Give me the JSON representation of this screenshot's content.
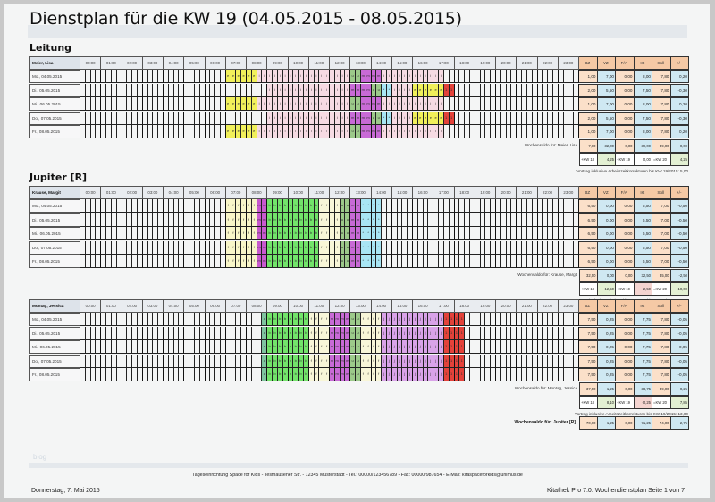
{
  "title": "Dienstplan für die KW 19 (04.05.2015 - 08.05.2015)",
  "hours": [
    "00:00",
    "01:00",
    "02:00",
    "03:00",
    "04:00",
    "05:00",
    "06:00",
    "07:00",
    "08:00",
    "09:00",
    "10:00",
    "11:00",
    "12:00",
    "13:00",
    "14:00",
    "15:00",
    "16:00",
    "17:00",
    "18:00",
    "19:00",
    "20:00",
    "21:00",
    "22:00",
    "23:00"
  ],
  "summary_headers": [
    "BZ",
    "VZ",
    "F/A",
    "Ist",
    "Soll",
    "+/-"
  ],
  "colors": {
    "e": "#f1f05a",
    "i": "#f6dbe3",
    "u": "#9cc98a",
    "M": "#c86ad6",
    "*": "#a8e6f4",
    "F": "#f8f6c8",
    "m": "#c85ad0",
    "b": "#72e46a",
    "f": "#f8f6d8",
    "J": "#d9a3e8",
    "1": "#e4423a",
    "a": "#7fc4a0",
    ".": ""
  },
  "sections": [
    {
      "title": "Leitung",
      "employee": "Meier, Lisa",
      "rows": [
        {
          "day": "Mo., 04.05.2015",
          "cells": "............................eeeeeeiiiiiiiiiiiiiiiiiiuuMMMMiiiiiiiiiiii",
          "sum": [
            "1,00",
            "7,00",
            "0,00",
            "8,00",
            "7,80",
            "0,20"
          ]
        },
        {
          "day": "Di., 05.05.2015",
          "cells": "....................................iiiiiiiiiiiiiiiiMMMMuu**iiiieeeeee11",
          "sum": [
            "2,00",
            "5,50",
            "0,00",
            "7,50",
            "7,80",
            "-0,30"
          ]
        },
        {
          "day": "Mi., 06.05.2015",
          "cells": "............................eeeeeeiiiiiiiiiiiiiiiiiiuuMMMMiiiiiiiiiiii",
          "sum": [
            "1,00",
            "7,00",
            "0,00",
            "8,00",
            "7,80",
            "0,20"
          ]
        },
        {
          "day": "Do., 07.05.2015",
          "cells": "....................................iiiiiiiiiiiiiiiiMMMMuu**iiiieeeeee11",
          "sum": [
            "2,00",
            "5,50",
            "0,00",
            "7,50",
            "7,80",
            "-0,30"
          ]
        },
        {
          "day": "Fr., 08.05.2015",
          "cells": "............................eeeeeeiiiiiiiiiiiiiiiiiiuuMMMMiiiiiiiiiiii",
          "sum": [
            "1,00",
            "7,00",
            "0,00",
            "8,00",
            "7,80",
            "0,20"
          ]
        }
      ],
      "saldo_label": "Wochensaldo für: Meier, Lisa",
      "saldo": [
        "7,00",
        "32,00",
        "0,00",
        "39,00",
        "39,00",
        "0,00"
      ],
      "kw": [
        [
          "+KW 18",
          "4,25",
          "green"
        ],
        [
          "+KW 19",
          "0,00",
          "white"
        ],
        [
          "=KW 20",
          "4,25",
          "green"
        ]
      ],
      "vortrag": "Vortrag inklusive Arbeitszeitkorrekturen bis KW 19/2015: 5,00"
    },
    {
      "title": "Jupiter [R]",
      "employee": "Krause, Margit",
      "rows": [
        {
          "day": "Mo., 04.05.2015",
          "cells": "............................FFFFFFmmbbbbbbbbbbffffuuMM****",
          "sum": [
            "6,50",
            "0,00",
            "0,00",
            "6,50",
            "7,00",
            "-0,50"
          ]
        },
        {
          "day": "Di., 05.05.2015",
          "cells": "............................FFFFFFmmbbbbbbbbbbffffuuMM****",
          "sum": [
            "6,50",
            "0,00",
            "0,00",
            "6,50",
            "7,00",
            "-0,50"
          ]
        },
        {
          "day": "Mi., 06.05.2015",
          "cells": "............................FFFFFFmmbbbbbbbbbbffffuuMM****",
          "sum": [
            "6,50",
            "0,00",
            "0,00",
            "6,50",
            "7,00",
            "-0,50"
          ]
        },
        {
          "day": "Do., 07.05.2015",
          "cells": "............................FFFFFFmmbbbbbbbbbbffffuuMM****",
          "sum": [
            "6,50",
            "0,00",
            "0,00",
            "6,50",
            "7,00",
            "-0,50"
          ]
        },
        {
          "day": "Fr., 08.05.2015",
          "cells": "............................FFFFFFmmbbbbbbbbbbffffuuMM****",
          "sum": [
            "6,50",
            "0,00",
            "0,00",
            "6,50",
            "7,00",
            "-0,50"
          ]
        }
      ],
      "saldo_label": "Wochensaldo für: Krause, Margit",
      "saldo": [
        "32,50",
        "0,00",
        "0,00",
        "32,50",
        "35,00",
        "-2,50"
      ],
      "kw": [
        [
          "+KW 18",
          "12,50",
          "green"
        ],
        [
          "+KW 19",
          "-2,50",
          "red"
        ],
        [
          "=KW 20",
          "10,00",
          "green"
        ]
      ],
      "vortrag": "Vortrag inklusive Arbeitszeitkorrekturen bis KW 19/2015: 11,00"
    },
    {
      "title": "",
      "employee": "Montag, Jessica",
      "rows": [
        {
          "day": "Mo., 04.05.2015",
          "cells": "...................................abbbbbbbbffffMMMMuuffffJJJJJJJJJJJJ1111",
          "sum": [
            "7,50",
            "0,25",
            "0,00",
            "7,75",
            "7,80",
            "-0,05"
          ]
        },
        {
          "day": "Di., 05.05.2015",
          "cells": "...................................abbbbbbbbffffMMMMuuffffJJJJJJJJJJJJ1111",
          "sum": [
            "7,50",
            "0,25",
            "0,00",
            "7,75",
            "7,80",
            "-0,05"
          ]
        },
        {
          "day": "Mi., 06.05.2015",
          "cells": "...................................abbbbbbbbffffMMMMuuffffJJJJJJJJJJJJ1111",
          "sum": [
            "7,50",
            "0,25",
            "0,00",
            "7,75",
            "7,80",
            "-0,05"
          ]
        },
        {
          "day": "Do., 07.05.2015",
          "cells": "...................................abbbbbbbbffffMMMMuuffffJJJJJJJJJJJJ1111",
          "sum": [
            "7,50",
            "0,25",
            "0,00",
            "7,75",
            "7,80",
            "-0,05"
          ]
        },
        {
          "day": "Fr., 08.05.2015",
          "cells": "...................................abbbbbbbbffffMMMMuuffffJJJJJJJJJJJJ1111",
          "sum": [
            "7,50",
            "0,25",
            "0,00",
            "7,75",
            "7,80",
            "-0,05"
          ]
        }
      ],
      "saldo_label": "Wochensaldo für: Montag, Jessica",
      "saldo": [
        "37,50",
        "1,25",
        "0,00",
        "38,75",
        "39,00",
        "-0,25"
      ],
      "kw": [
        [
          "+KW 18",
          "8,10",
          "green"
        ],
        [
          "+KW 19",
          "-0,25",
          "red"
        ],
        [
          "=KW 20",
          "7,85",
          "green"
        ]
      ],
      "vortrag": "Vortrag inklusive Arbeitszeitkorrekturen bis KW 19/2015: 13,00"
    }
  ],
  "group_total": {
    "label": "Wochensaldo für: Jupiter [R]",
    "values": [
      "70,00",
      "1,25",
      "0,00",
      "71,25",
      "74,00",
      "-2,75"
    ]
  },
  "footer": {
    "watermark": "blog",
    "address": "Tageseinrichtung Space for Kids - Testhausener Str. - 12345 Musterstadt - Tel.: 00000/123456789 - Fax: 00000/987654 - E-Mail: kitaspaceforkids@unimus.de",
    "date": "Donnerstag, 7. Mai 2015",
    "page_info": "Kitathek Pro 7.0: Wochendienstplan Seite 1 von 7"
  }
}
